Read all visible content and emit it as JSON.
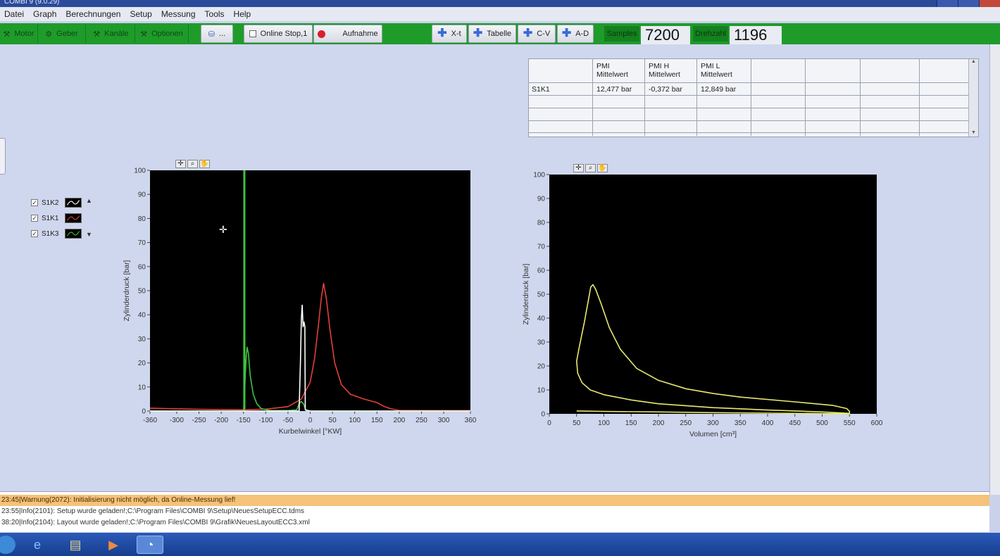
{
  "window": {
    "title": "COMBI 9 (9.0.29)"
  },
  "menu": [
    "Datei",
    "Graph",
    "Berechnungen",
    "Setup",
    "Messung",
    "Tools",
    "Help"
  ],
  "toolbar": {
    "motor": "Motor",
    "geber": "Geber",
    "kanaele": "Kanäle",
    "optionen": "Optionen",
    "dropdown_suffix": "...",
    "online_stop": "Online Stop,1",
    "aufnahme": "Aufnahme",
    "xt": "X-t",
    "tabelle": "Tabelle",
    "cv": "C-V",
    "ad": "A-D",
    "samples_label": "Samples",
    "samples_value": "7200",
    "drehzahl_label": "Drehzahl",
    "drehzahl_value": "1196"
  },
  "table": {
    "headers": [
      {
        "l1": "PMI",
        "l2": "Mittelwert"
      },
      {
        "l1": "PMI H",
        "l2": "Mittelwert"
      },
      {
        "l1": "PMI L",
        "l2": "Mittelwert"
      }
    ],
    "rows": [
      {
        "name": "S1K1",
        "pmi": "12,477 bar",
        "pmi_h": "-0,372 bar",
        "pmi_l": "12,849 bar"
      }
    ]
  },
  "legend": [
    {
      "name": "S1K2",
      "color": "#ffffff",
      "check": "✓"
    },
    {
      "name": "S1K1",
      "color": "#e0403a",
      "check": "✓"
    },
    {
      "name": "S1K3",
      "color": "#3ec33e",
      "check": "✓"
    }
  ],
  "chart_data": [
    {
      "type": "line",
      "xlabel": "Kurbelwinkel [°KW]",
      "ylabel": "Zylinderdruck [bar]",
      "xlim": [
        -360,
        360
      ],
      "ylim": [
        0,
        100
      ],
      "xticks": [
        -360,
        -300,
        -250,
        -200,
        -150,
        -100,
        -50,
        0,
        50,
        100,
        150,
        200,
        250,
        300,
        360
      ],
      "yticks": [
        0,
        10,
        20,
        30,
        40,
        50,
        60,
        70,
        80,
        90,
        100
      ],
      "grid": false,
      "series": [
        {
          "name": "S1K1",
          "color": "#e0403a",
          "points": [
            [
              -360,
              1.2
            ],
            [
              -300,
              0.9
            ],
            [
              -250,
              0.7
            ],
            [
              -200,
              0.6
            ],
            [
              -150,
              0.5
            ],
            [
              -100,
              0.8
            ],
            [
              -50,
              1.8
            ],
            [
              -20,
              5
            ],
            [
              0,
              12
            ],
            [
              10,
              22
            ],
            [
              18,
              35
            ],
            [
              25,
              47
            ],
            [
              30,
              53
            ],
            [
              36,
              47
            ],
            [
              45,
              33
            ],
            [
              55,
              20
            ],
            [
              70,
              11
            ],
            [
              90,
              7
            ],
            [
              120,
              5
            ],
            [
              150,
              3.5
            ],
            [
              165,
              2
            ],
            [
              180,
              1
            ],
            [
              200,
              0.3
            ],
            [
              250,
              0.2
            ],
            [
              300,
              0.2
            ],
            [
              360,
              0.2
            ]
          ]
        },
        {
          "name": "S1K3",
          "color": "#3ec33e",
          "points": [
            [
              -360,
              0
            ],
            [
              -150,
              0
            ],
            [
              -148,
              5
            ],
            [
              -146,
              14
            ],
            [
              -144,
              22
            ],
            [
              -142,
              26.5
            ],
            [
              -139,
              24
            ],
            [
              -135,
              15
            ],
            [
              -128,
              7
            ],
            [
              -120,
              3
            ],
            [
              -110,
              1
            ],
            [
              -90,
              0.2
            ],
            [
              -50,
              0.2
            ],
            [
              -30,
              0.5
            ],
            [
              -25,
              3
            ],
            [
              -20,
              4
            ],
            [
              -15,
              3
            ],
            [
              -10,
              0.3
            ],
            [
              0,
              0
            ],
            [
              360,
              0
            ]
          ]
        },
        {
          "name": "S1K2",
          "color": "#ffffff",
          "points": [
            [
              -360,
              0
            ],
            [
              -25,
              0
            ],
            [
              -22,
              20
            ],
            [
              -20,
              38
            ],
            [
              -18,
              44
            ],
            [
              -16,
              35
            ],
            [
              -14,
              37
            ],
            [
              -12,
              35
            ],
            [
              -11,
              0.5
            ],
            [
              0,
              0
            ],
            [
              360,
              0
            ]
          ]
        }
      ],
      "annotations": [
        {
          "x": -148,
          "color": "#3ec33e",
          "type": "vertical-line"
        }
      ]
    },
    {
      "type": "line",
      "xlabel": "Volumen [cm³]",
      "ylabel": "Zylinderdruck [bar]",
      "xlim": [
        0,
        600
      ],
      "ylim": [
        0,
        100
      ],
      "xticks": [
        0,
        50,
        100,
        150,
        200,
        250,
        300,
        350,
        400,
        450,
        500,
        550,
        600
      ],
      "yticks": [
        0,
        10,
        20,
        30,
        40,
        50,
        60,
        70,
        80,
        90,
        100
      ],
      "grid": false,
      "series": [
        {
          "name": "S1K1",
          "color": "#e6e870",
          "points": [
            [
              50,
              1.2
            ],
            [
              100,
              1.0
            ],
            [
              200,
              0.8
            ],
            [
              300,
              0.5
            ],
            [
              400,
              0.3
            ],
            [
              500,
              0.1
            ],
            [
              550,
              0
            ],
            [
              550,
              1
            ],
            [
              545,
              2.2
            ],
            [
              520,
              3.5
            ],
            [
              450,
              5
            ],
            [
              350,
              7
            ],
            [
              300,
              8.5
            ],
            [
              250,
              10.5
            ],
            [
              200,
              14
            ],
            [
              160,
              19
            ],
            [
              130,
              27
            ],
            [
              110,
              36
            ],
            [
              95,
              46
            ],
            [
              85,
              52
            ],
            [
              80,
              54
            ],
            [
              76,
              53
            ],
            [
              72,
              48
            ],
            [
              64,
              38
            ],
            [
              55,
              28
            ],
            [
              50,
              22
            ],
            [
              52,
              17
            ],
            [
              60,
              13
            ],
            [
              75,
              10
            ],
            [
              100,
              8
            ],
            [
              150,
              5.8
            ],
            [
              200,
              4.2
            ],
            [
              300,
              2.6
            ],
            [
              400,
              1.6
            ],
            [
              500,
              0.8
            ],
            [
              550,
              0.2
            ]
          ]
        }
      ]
    }
  ],
  "status": [
    {
      "text": "23:45|Warnung(2072): Initialisierung nicht möglich, da Online-Messung lief!"
    },
    {
      "text": "23:55|Info(2101): Setup wurde geladen!;C:\\Program Files\\COMBI 9\\Setup\\NeuesSetupECC.tdms"
    },
    {
      "text": "38:20|Info(2104): Layout wurde geladen!;C:\\Program Files\\COMBI 9\\Grafik\\NeuesLayoutECC3.xml"
    }
  ]
}
